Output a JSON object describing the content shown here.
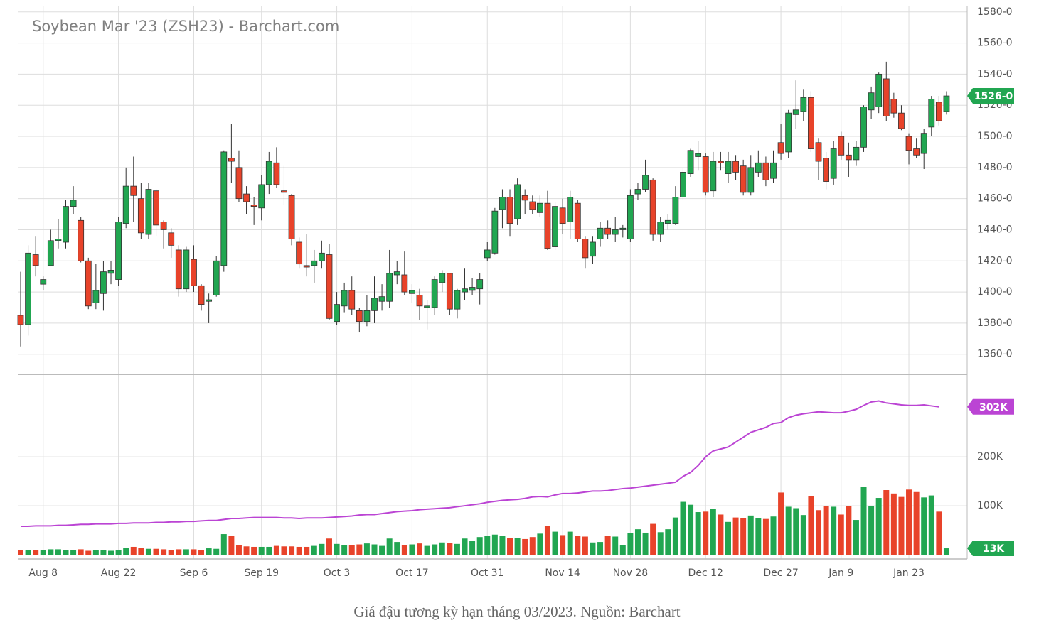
{
  "chart_data": {
    "type": "candlestick",
    "title": "Soybean Mar '23 (ZSH23) - Barchart.com",
    "up_color": "#21a651",
    "down_color": "#e8432a",
    "oi_color": "#bb44d4",
    "ylim": [
      1348,
      1584
    ],
    "yticks": [
      {
        "value": 1360,
        "label": "1360-0"
      },
      {
        "value": 1380,
        "label": "1380-0"
      },
      {
        "value": 1400,
        "label": "1400-0"
      },
      {
        "value": 1420,
        "label": "1420-0"
      },
      {
        "value": 1440,
        "label": "1440-0"
      },
      {
        "value": 1460,
        "label": "1460-0"
      },
      {
        "value": 1480,
        "label": "1480-0"
      },
      {
        "value": 1500,
        "label": "1500-0"
      },
      {
        "value": 1520,
        "label": "1520-0"
      },
      {
        "value": 1540,
        "label": "1540-0"
      },
      {
        "value": 1560,
        "label": "1560-0"
      },
      {
        "value": 1580,
        "label": "1580-0"
      }
    ],
    "y2lim": [
      0,
      367
    ],
    "y2ticks": [
      {
        "value": 100,
        "label": "100K"
      },
      {
        "value": 200,
        "label": "200K"
      }
    ],
    "xticks": [
      {
        "value": 3,
        "label": "Aug 8"
      },
      {
        "value": 13,
        "label": "Aug 22"
      },
      {
        "value": 23,
        "label": "Sep 6"
      },
      {
        "value": 32,
        "label": "Sep 19"
      },
      {
        "value": 42,
        "label": "Oct 3"
      },
      {
        "value": 52,
        "label": "Oct 17"
      },
      {
        "value": 62,
        "label": "Oct 31"
      },
      {
        "value": 72,
        "label": "Nov 14"
      },
      {
        "value": 81,
        "label": "Nov 28"
      },
      {
        "value": 91,
        "label": "Dec 12"
      },
      {
        "value": 101,
        "label": "Dec 27"
      },
      {
        "value": 109,
        "label": "Jan 9"
      },
      {
        "value": 118,
        "label": "Jan 23"
      }
    ],
    "last_price_label": "1526-0",
    "last_oi_label": "302K",
    "last_volume_label": "13K",
    "ohlc": [
      [
        1385,
        1413,
        1365,
        1379
      ],
      [
        1379,
        1430,
        1372,
        1425
      ],
      [
        1424,
        1436,
        1410,
        1417
      ],
      [
        1405,
        1410,
        1401,
        1408
      ],
      [
        1417,
        1440,
        1417,
        1433
      ],
      [
        1433,
        1447,
        1428,
        1434
      ],
      [
        1432,
        1459,
        1428,
        1455
      ],
      [
        1455,
        1468,
        1450,
        1459
      ],
      [
        1446,
        1448,
        1419,
        1420
      ],
      [
        1420,
        1422,
        1389,
        1391
      ],
      [
        1393,
        1418,
        1389,
        1401
      ],
      [
        1399,
        1420,
        1388,
        1413
      ],
      [
        1412,
        1420,
        1405,
        1414
      ],
      [
        1408,
        1448,
        1404,
        1445
      ],
      [
        1444,
        1480,
        1441,
        1468
      ],
      [
        1468,
        1487,
        1445,
        1462
      ],
      [
        1460,
        1470,
        1434,
        1438
      ],
      [
        1437,
        1470,
        1434,
        1466
      ],
      [
        1465,
        1466,
        1436,
        1443
      ],
      [
        1445,
        1446,
        1428,
        1440
      ],
      [
        1438,
        1441,
        1422,
        1430
      ],
      [
        1427,
        1430,
        1397,
        1402
      ],
      [
        1402,
        1429,
        1400,
        1427
      ],
      [
        1421,
        1430,
        1400,
        1404
      ],
      [
        1404,
        1405,
        1388,
        1392
      ],
      [
        1394,
        1399,
        1380,
        1395
      ],
      [
        1398,
        1423,
        1397,
        1420
      ],
      [
        1417,
        1491,
        1413,
        1490
      ],
      [
        1486,
        1508,
        1470,
        1484
      ],
      [
        1480,
        1491,
        1458,
        1460
      ],
      [
        1463,
        1468,
        1450,
        1458
      ],
      [
        1456,
        1461,
        1443,
        1455
      ],
      [
        1454,
        1475,
        1446,
        1469
      ],
      [
        1469,
        1490,
        1463,
        1484
      ],
      [
        1483,
        1493,
        1467,
        1469
      ],
      [
        1465,
        1481,
        1456,
        1464
      ],
      [
        1462,
        1463,
        1430,
        1434
      ],
      [
        1432,
        1435,
        1415,
        1418
      ],
      [
        1417,
        1437,
        1410,
        1416
      ],
      [
        1417,
        1427,
        1406,
        1420
      ],
      [
        1420,
        1433,
        1415,
        1425
      ],
      [
        1424,
        1431,
        1382,
        1383
      ],
      [
        1381,
        1400,
        1379,
        1392
      ],
      [
        1391,
        1406,
        1387,
        1401
      ],
      [
        1401,
        1410,
        1385,
        1389
      ],
      [
        1388,
        1390,
        1374,
        1381
      ],
      [
        1381,
        1398,
        1378,
        1388
      ],
      [
        1388,
        1410,
        1380,
        1396
      ],
      [
        1394,
        1405,
        1388,
        1397
      ],
      [
        1394,
        1427,
        1390,
        1412
      ],
      [
        1411,
        1420,
        1405,
        1413
      ],
      [
        1411,
        1426,
        1398,
        1400
      ],
      [
        1399,
        1405,
        1393,
        1401
      ],
      [
        1398,
        1402,
        1382,
        1391
      ],
      [
        1390,
        1395,
        1376,
        1391
      ],
      [
        1390,
        1410,
        1385,
        1408
      ],
      [
        1406,
        1414,
        1400,
        1412
      ],
      [
        1412,
        1412,
        1385,
        1389
      ],
      [
        1389,
        1402,
        1383,
        1401
      ],
      [
        1400,
        1415,
        1395,
        1402
      ],
      [
        1401,
        1409,
        1398,
        1403
      ],
      [
        1402,
        1412,
        1392,
        1408
      ],
      [
        1422,
        1432,
        1420,
        1427
      ],
      [
        1425,
        1454,
        1424,
        1452
      ],
      [
        1453,
        1466,
        1441,
        1461
      ],
      [
        1461,
        1466,
        1436,
        1444
      ],
      [
        1447,
        1473,
        1443,
        1469
      ],
      [
        1462,
        1466,
        1450,
        1459
      ],
      [
        1458,
        1462,
        1450,
        1453
      ],
      [
        1451,
        1462,
        1448,
        1457
      ],
      [
        1457,
        1465,
        1427,
        1428
      ],
      [
        1429,
        1458,
        1427,
        1455
      ],
      [
        1454,
        1460,
        1437,
        1444
      ],
      [
        1445,
        1465,
        1434,
        1461
      ],
      [
        1457,
        1459,
        1432,
        1434
      ],
      [
        1434,
        1436,
        1415,
        1422
      ],
      [
        1423,
        1436,
        1418,
        1432
      ],
      [
        1434,
        1445,
        1429,
        1441
      ],
      [
        1441,
        1446,
        1434,
        1437
      ],
      [
        1437,
        1448,
        1432,
        1440
      ],
      [
        1440,
        1443,
        1435,
        1441
      ],
      [
        1434,
        1466,
        1432,
        1462
      ],
      [
        1463,
        1470,
        1459,
        1466
      ],
      [
        1466,
        1485,
        1464,
        1475
      ],
      [
        1472,
        1473,
        1433,
        1437
      ],
      [
        1437,
        1448,
        1432,
        1445
      ],
      [
        1444,
        1450,
        1440,
        1446
      ],
      [
        1444,
        1468,
        1443,
        1461
      ],
      [
        1461,
        1480,
        1459,
        1477
      ],
      [
        1476,
        1492,
        1474,
        1491
      ],
      [
        1487,
        1497,
        1478,
        1489
      ],
      [
        1487,
        1489,
        1462,
        1464
      ],
      [
        1465,
        1490,
        1461,
        1484
      ],
      [
        1484,
        1490,
        1478,
        1483
      ],
      [
        1476,
        1490,
        1470,
        1484
      ],
      [
        1484,
        1488,
        1472,
        1477
      ],
      [
        1481,
        1485,
        1462,
        1464
      ],
      [
        1464,
        1488,
        1462,
        1480
      ],
      [
        1477,
        1491,
        1474,
        1483
      ],
      [
        1483,
        1487,
        1468,
        1472
      ],
      [
        1473,
        1491,
        1470,
        1483
      ],
      [
        1496,
        1508,
        1485,
        1489
      ],
      [
        1490,
        1517,
        1486,
        1515
      ],
      [
        1514,
        1536,
        1505,
        1517
      ],
      [
        1516,
        1530,
        1510,
        1525
      ],
      [
        1525,
        1529,
        1490,
        1492
      ],
      [
        1496,
        1499,
        1472,
        1484
      ],
      [
        1486,
        1490,
        1466,
        1471
      ],
      [
        1473,
        1497,
        1469,
        1492
      ],
      [
        1500,
        1503,
        1485,
        1488
      ],
      [
        1488,
        1496,
        1474,
        1485
      ],
      [
        1485,
        1497,
        1481,
        1493
      ],
      [
        1493,
        1520,
        1490,
        1519
      ],
      [
        1517,
        1532,
        1511,
        1528
      ],
      [
        1519,
        1541,
        1515,
        1540
      ],
      [
        1537,
        1548,
        1510,
        1513
      ],
      [
        1524,
        1528,
        1512,
        1515
      ],
      [
        1515,
        1520,
        1504,
        1505
      ],
      [
        1500,
        1502,
        1482,
        1491
      ],
      [
        1492,
        1499,
        1486,
        1488
      ],
      [
        1489,
        1505,
        1479,
        1502
      ],
      [
        1506,
        1526,
        1500,
        1524
      ],
      [
        1522,
        1526,
        1507,
        1510
      ],
      [
        1516,
        1529,
        1514,
        1526
      ]
    ],
    "volume": [
      10,
      10,
      9,
      9,
      11,
      11,
      10,
      9,
      11,
      8,
      10,
      9,
      8,
      10,
      14,
      16,
      14,
      12,
      12,
      11,
      10,
      11,
      11,
      11,
      10,
      13,
      12,
      42,
      38,
      20,
      17,
      16,
      16,
      16,
      18,
      17,
      17,
      16,
      16,
      18,
      22,
      33,
      22,
      20,
      20,
      21,
      23,
      21,
      18,
      33,
      26,
      20,
      21,
      23,
      18,
      21,
      25,
      24,
      22,
      33,
      28,
      36,
      39,
      41,
      38,
      34,
      34,
      32,
      36,
      43,
      59,
      47,
      40,
      47,
      38,
      37,
      25,
      26,
      38,
      37,
      19,
      44,
      52,
      45,
      63,
      46,
      52,
      76,
      108,
      102,
      87,
      88,
      93,
      82,
      67,
      76,
      75,
      80,
      75,
      73,
      78,
      127,
      98,
      95,
      81,
      120,
      91,
      100,
      98,
      82,
      100,
      71,
      139,
      100,
      116,
      132,
      125,
      118,
      133,
      128,
      117,
      121,
      88,
      13
    ],
    "open_interest": [
      58,
      58,
      59,
      59,
      59,
      60,
      60,
      61,
      62,
      62,
      63,
      63,
      63,
      64,
      64,
      65,
      65,
      65,
      66,
      66,
      67,
      67,
      68,
      68,
      69,
      70,
      70,
      72,
      74,
      74,
      75,
      76,
      76,
      76,
      76,
      75,
      75,
      74,
      75,
      75,
      75,
      76,
      77,
      78,
      79,
      81,
      82,
      82,
      84,
      86,
      88,
      89,
      90,
      92,
      93,
      94,
      95,
      96,
      98,
      100,
      102,
      104,
      107,
      109,
      111,
      112,
      113,
      115,
      118,
      119,
      118,
      122,
      125,
      125,
      126,
      128,
      130,
      130,
      131,
      133,
      135,
      136,
      138,
      140,
      142,
      144,
      146,
      148,
      160,
      168,
      182,
      200,
      212,
      216,
      220,
      230,
      240,
      250,
      255,
      260,
      268,
      270,
      280,
      285,
      288,
      290,
      292,
      291,
      290,
      290,
      293,
      297,
      305,
      312,
      314,
      310,
      308,
      306,
      305,
      305,
      306,
      304,
      302,
      null
    ]
  },
  "caption": "Giá đậu tương kỳ hạn tháng 03/2023. Nguồn: Barchart"
}
